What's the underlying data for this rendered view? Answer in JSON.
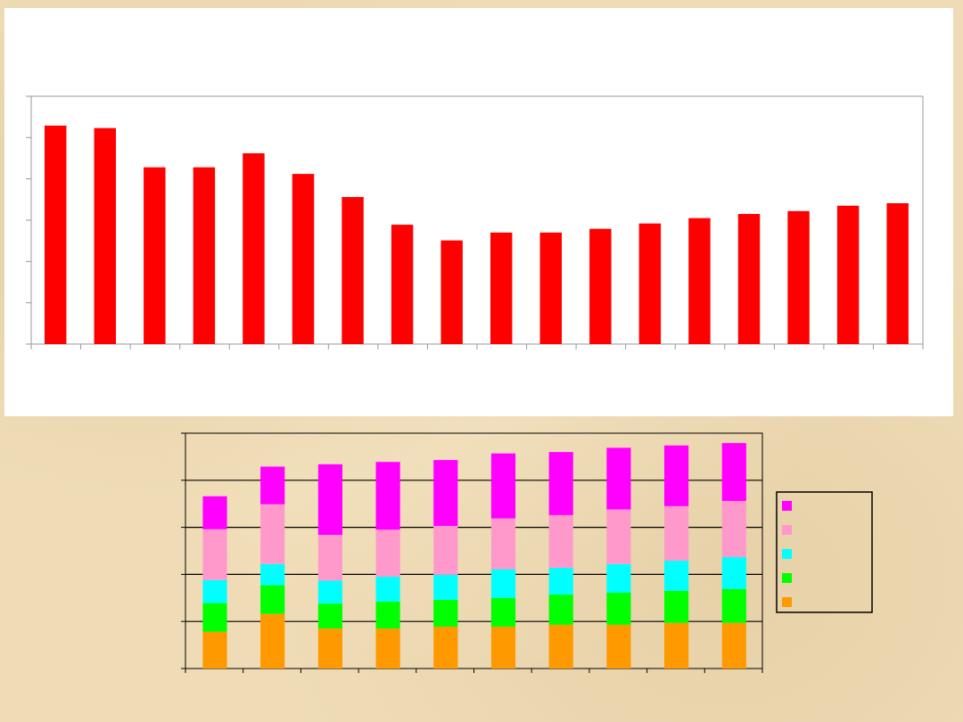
{
  "chart_data": [
    {
      "type": "bar",
      "title": "",
      "xlabel": "",
      "ylabel": "",
      "ylim": [
        0,
        6
      ],
      "grid": false,
      "color": "#ff0000",
      "categories": [
        "",
        "",
        "",
        "",
        "",
        "",
        "",
        "",
        "",
        "",
        "",
        "",
        "",
        "",
        "",
        "",
        "",
        ""
      ],
      "values": [
        5.29,
        5.23,
        4.28,
        4.28,
        4.62,
        4.12,
        3.56,
        2.89,
        2.51,
        2.7,
        2.7,
        2.79,
        2.92,
        3.05,
        3.15,
        3.22,
        3.35,
        3.41
      ]
    },
    {
      "type": "bar",
      "stacked": true,
      "title": "",
      "xlabel": "",
      "ylabel": "",
      "ylim": [
        0,
        5
      ],
      "grid": true,
      "legend": "right",
      "categories": [
        "",
        "",
        "",
        "",
        "",
        "",
        "",
        "",
        "",
        ""
      ],
      "series": [
        {
          "color": "#ff9900",
          "values": [
            0.78,
            1.16,
            0.85,
            0.85,
            0.89,
            0.89,
            0.93,
            0.93,
            0.97,
            0.97
          ]
        },
        {
          "color": "#00ff00",
          "values": [
            0.61,
            0.61,
            0.53,
            0.57,
            0.57,
            0.61,
            0.64,
            0.68,
            0.68,
            0.72
          ]
        },
        {
          "color": "#00ffff",
          "values": [
            0.49,
            0.45,
            0.49,
            0.53,
            0.53,
            0.61,
            0.57,
            0.61,
            0.64,
            0.68
          ]
        },
        {
          "color": "#ff99cc",
          "values": [
            1.08,
            1.27,
            0.97,
            1.0,
            1.04,
            1.08,
            1.12,
            1.16,
            1.16,
            1.19
          ]
        },
        {
          "color": "#ff00ff",
          "values": [
            0.7,
            0.8,
            1.5,
            1.44,
            1.4,
            1.38,
            1.34,
            1.31,
            1.29,
            1.23
          ]
        }
      ]
    }
  ]
}
